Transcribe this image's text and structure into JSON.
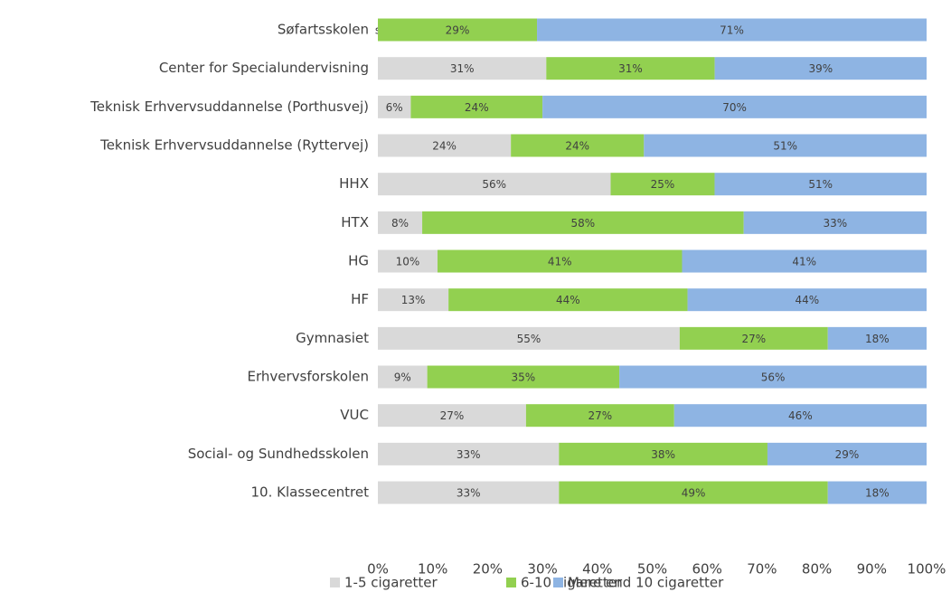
{
  "chart_data": {
    "type": "bar",
    "orientation": "horizontal",
    "stacking": "percent",
    "categories": [
      "Søfartsskolen",
      "Center for Specialundervisning",
      "Teknisk Erhvervsuddannelse (Porthusvej)",
      "Teknisk Erhvervsuddannelse (Ryttervej)",
      "HHX",
      "HTX",
      "HG",
      "HF",
      "Gymnasiet",
      "Erhvervsforskolen",
      "VUC",
      "Social- og Sundhedsskolen",
      "10. Klassecentret"
    ],
    "series": [
      {
        "name": "1-5 cigaretter",
        "color": "#d9d9d9",
        "values": [
          0,
          31,
          6,
          24,
          56,
          8,
          10,
          13,
          55,
          9,
          27,
          33,
          33
        ],
        "value_labels": [
          "s",
          "31%",
          "6%",
          "24%",
          "56%",
          "8%",
          "10%",
          "13%",
          "55%",
          "9%",
          "27%",
          "33%",
          "33%"
        ]
      },
      {
        "name": "6-10 cigaretter",
        "color": "#92d050",
        "values": [
          29,
          31,
          24,
          24,
          25,
          58,
          41,
          44,
          27,
          35,
          27,
          38,
          49
        ],
        "value_labels": [
          "29%",
          "31%",
          "24%",
          "24%",
          "25%",
          "58%",
          "41%",
          "44%",
          "27%",
          "35%",
          "27%",
          "38%",
          "49%"
        ]
      },
      {
        "name": "Mere end 10 cigaretter",
        "color": "#8eb4e3",
        "values": [
          71,
          39,
          70,
          51,
          51,
          33,
          41,
          44,
          18,
          56,
          46,
          29,
          18
        ],
        "value_labels": [
          "71%",
          "39%",
          "70%",
          "51%",
          "51%",
          "33%",
          "41%",
          "44%",
          "18%",
          "56%",
          "46%",
          "29%",
          "18%"
        ]
      }
    ],
    "xlim": [
      0,
      100
    ],
    "xticks": [
      {
        "value": 0,
        "label": "0%"
      },
      {
        "value": 10,
        "label": "10%"
      },
      {
        "value": 20,
        "label": "20%"
      },
      {
        "value": 30,
        "label": "30%"
      },
      {
        "value": 40,
        "label": "40%"
      },
      {
        "value": 50,
        "label": "50%"
      },
      {
        "value": 60,
        "label": "60%"
      },
      {
        "value": 70,
        "label": "70%"
      },
      {
        "value": 80,
        "label": "80%"
      },
      {
        "value": 90,
        "label": "90%"
      },
      {
        "value": 100,
        "label": "100%"
      }
    ],
    "legend": "bottom"
  }
}
